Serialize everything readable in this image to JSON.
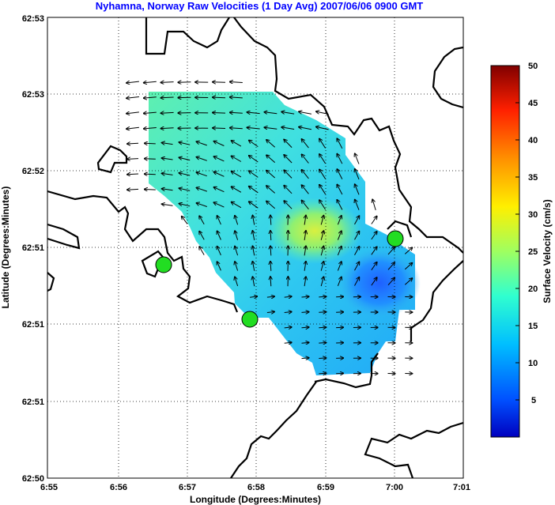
{
  "title": "Nyhamna, Norway Raw Velocities (1 Day Avg) 2007/06/06 0900 GMT",
  "xlabel": "Longitude (Degrees:Minutes)",
  "ylabel": "Latitude (Degrees:Minutes)",
  "colorbar_label": "Surface Velocity (cm/s)",
  "x_ticks": [
    "6:55",
    "6:56",
    "6:57",
    "6:58",
    "6:59",
    "7:00",
    "7:01"
  ],
  "y_ticks": [
    "62:53",
    "62:53",
    "62:52",
    "62:51",
    "62:51",
    "62:51",
    "62:50"
  ],
  "colorbar_ticks": [
    "50",
    "45",
    "40",
    "35",
    "30",
    "25",
    "20",
    "15",
    "10",
    "5"
  ],
  "colors": {
    "title": "#0000ff",
    "land_line": "#000000",
    "site_marker": "#22dd22",
    "grid": "#000000"
  },
  "chart_data": {
    "type": "heatmap",
    "title": "Nyhamna, Norway Raw Velocities (1 Day Avg) 2007/06/06 0900 GMT",
    "xlabel": "Longitude (Degrees:Minutes)",
    "ylabel": "Latitude (Degrees:Minutes)",
    "colorbar": {
      "label": "Surface Velocity (cm/s)",
      "range": [
        0,
        50
      ],
      "colormap": "jet"
    },
    "grid": true,
    "radar_sites": [
      {
        "lon": "6:56.7",
        "lat": "62:50.9"
      },
      {
        "lon": "6:57.9",
        "lat": "62:50.7"
      },
      {
        "lon": "7:00.0",
        "lat": "62:51.0"
      }
    ],
    "peak_velocity_region": {
      "lon": "6:59",
      "lat": "62:51",
      "approx_speed_cms": 22
    }
  }
}
